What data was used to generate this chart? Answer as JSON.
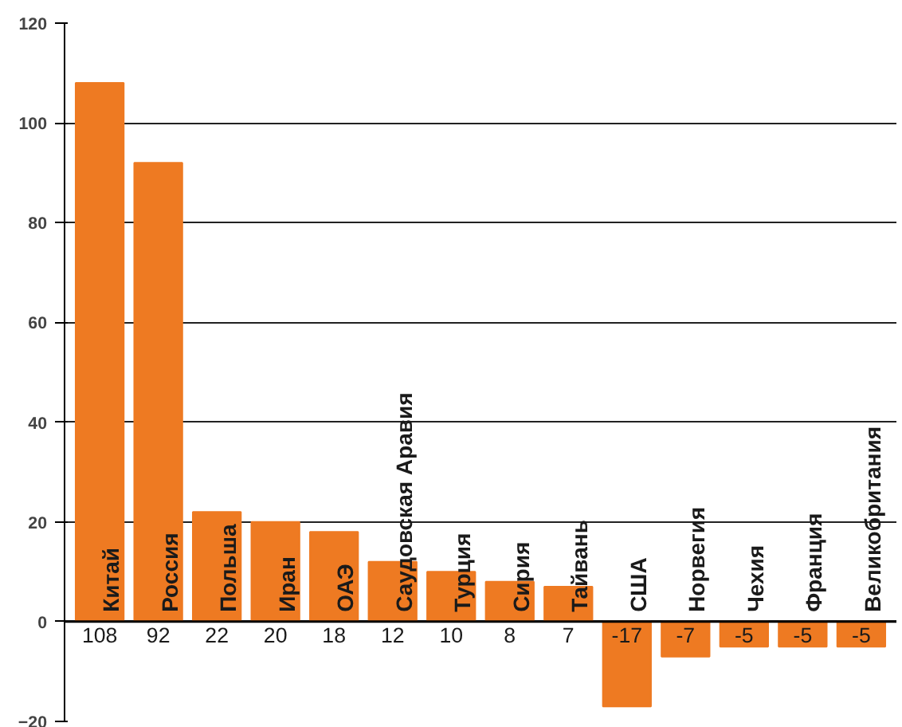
{
  "chart_data": {
    "type": "bar",
    "categories": [
      "Китай",
      "Россия",
      "Польша",
      "Иран",
      "ОАЭ",
      "Саудовская Аравия",
      "Турция",
      "Сирия",
      "Тайвань",
      "США",
      "Норвегия",
      "Чехия",
      "Франция",
      "Великобритания"
    ],
    "values": [
      108,
      92,
      22,
      20,
      18,
      12,
      10,
      8,
      7,
      -17,
      -7,
      -5,
      -5,
      -5
    ],
    "color": "#ee7a22",
    "ylim": [
      -20,
      120
    ],
    "yticks": [
      -20,
      0,
      20,
      40,
      60,
      80,
      100,
      120
    ],
    "grid": "y",
    "data_labels": true
  }
}
